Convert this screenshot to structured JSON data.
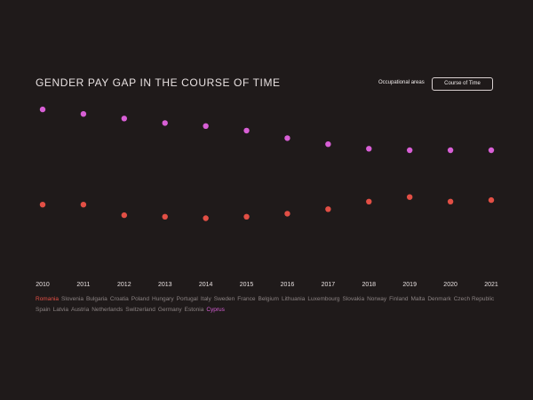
{
  "header": {
    "title": "GENDER PAY GAP IN THE COURSE OF TIME",
    "nav_occupational": "Occupational areas",
    "nav_course": "Course of Time"
  },
  "colors": {
    "background": "#1f1a1a",
    "series_upper": "#d85fd6",
    "series_lower": "#e24f45",
    "muted_text": "#8a8282"
  },
  "countries": [
    {
      "name": "Romania",
      "color": "#e24f45"
    },
    {
      "name": "Slovenia"
    },
    {
      "name": "Bulgaria"
    },
    {
      "name": "Croatia"
    },
    {
      "name": "Poland"
    },
    {
      "name": "Hungary"
    },
    {
      "name": "Portugal"
    },
    {
      "name": "Italy"
    },
    {
      "name": "Sweden"
    },
    {
      "name": "France"
    },
    {
      "name": "Belgium"
    },
    {
      "name": "Lithuania"
    },
    {
      "name": "Luxembourg"
    },
    {
      "name": "Slovakia"
    },
    {
      "name": "Norway"
    },
    {
      "name": "Finland"
    },
    {
      "name": "Malta"
    },
    {
      "name": "Denmark"
    },
    {
      "name": "Czech Republic"
    },
    {
      "name": "Spain"
    },
    {
      "name": "Latvia"
    },
    {
      "name": "Austria"
    },
    {
      "name": "Netherlands"
    },
    {
      "name": "Switzerland"
    },
    {
      "name": "Germany"
    },
    {
      "name": "Estonia"
    },
    {
      "name": "Cyprus",
      "color": "#d85fd6"
    }
  ],
  "chart_data": {
    "type": "scatter",
    "title": "GENDER PAY GAP IN THE COURSE OF TIME",
    "x": [
      "2010",
      "2011",
      "2012",
      "2013",
      "2014",
      "2015",
      "2016",
      "2017",
      "2018",
      "2019",
      "2020",
      "2021"
    ],
    "ylim": [
      0,
      1
    ],
    "grid": false,
    "legend": "none",
    "series": [
      {
        "color": "#d85fd6",
        "values": [
          0.97,
          0.94,
          0.91,
          0.88,
          0.86,
          0.83,
          0.78,
          0.74,
          0.71,
          0.7,
          0.7,
          0.7
        ]
      },
      {
        "color": "#e24f45",
        "values": [
          0.34,
          0.34,
          0.27,
          0.26,
          0.25,
          0.26,
          0.28,
          0.31,
          0.36,
          0.39,
          0.36,
          0.37
        ]
      }
    ]
  }
}
